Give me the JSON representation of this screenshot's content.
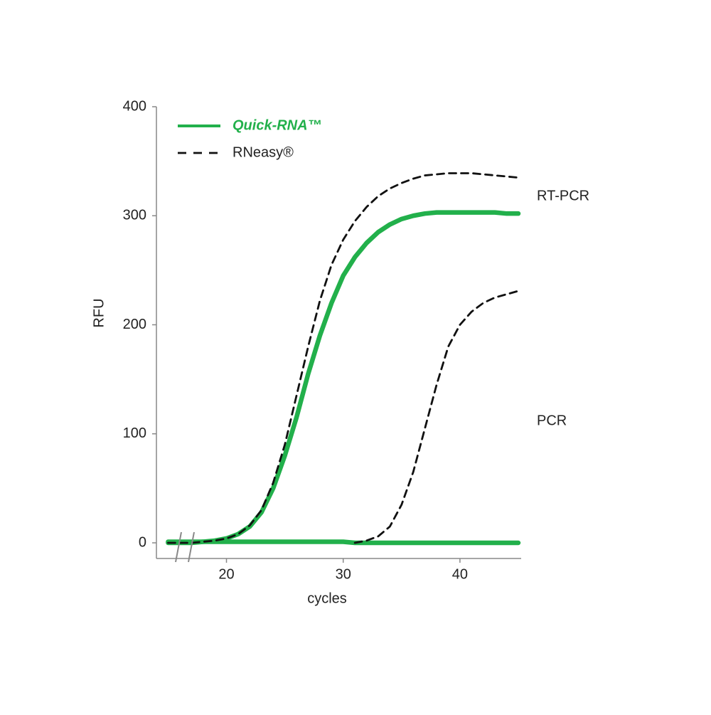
{
  "chart_data": {
    "type": "line",
    "x_label": "cycles",
    "y_label": "RFU",
    "x": [
      15,
      16,
      17,
      18,
      19,
      20,
      21,
      22,
      23,
      24,
      25,
      26,
      27,
      28,
      29,
      30,
      31,
      32,
      33,
      34,
      35,
      36,
      37,
      38,
      39,
      40,
      41,
      42,
      43,
      44,
      45
    ],
    "xlim": [
      14,
      45
    ],
    "xticks": [
      20,
      30,
      40
    ],
    "ylim": [
      0,
      400
    ],
    "yticks": [
      0,
      100,
      200,
      300,
      400
    ],
    "annotations": [
      "RT-PCR",
      "PCR"
    ],
    "series": [
      {
        "name": "Quick-RNA™",
        "color": "#22b04b",
        "style": "solid",
        "values": [
          0,
          0,
          0,
          1,
          2,
          4,
          8,
          15,
          28,
          50,
          80,
          115,
          155,
          190,
          220,
          245,
          262,
          275,
          285,
          292,
          297,
          300,
          302,
          303,
          303,
          303,
          303,
          303,
          303,
          302,
          302
        ],
        "pcr_values": [
          1,
          1,
          1,
          1,
          1,
          1,
          1,
          1,
          1,
          1,
          1,
          1,
          1,
          1,
          1,
          1,
          0,
          0,
          0,
          0,
          0,
          0,
          0,
          0,
          0,
          0,
          0,
          0,
          0,
          0,
          0
        ]
      },
      {
        "name": "RNeasy®",
        "color": "#111111",
        "style": "dashed",
        "values": [
          0,
          0,
          0,
          1,
          2,
          4,
          8,
          16,
          30,
          55,
          90,
          135,
          180,
          222,
          255,
          278,
          295,
          308,
          318,
          325,
          330,
          334,
          337,
          338,
          339,
          339,
          339,
          338,
          337,
          336,
          335
        ],
        "pcr_values": [
          null,
          null,
          null,
          null,
          null,
          null,
          null,
          null,
          null,
          null,
          null,
          null,
          null,
          null,
          null,
          null,
          0,
          2,
          6,
          15,
          35,
          65,
          105,
          145,
          180,
          200,
          212,
          220,
          225,
          228,
          231
        ]
      }
    ]
  }
}
